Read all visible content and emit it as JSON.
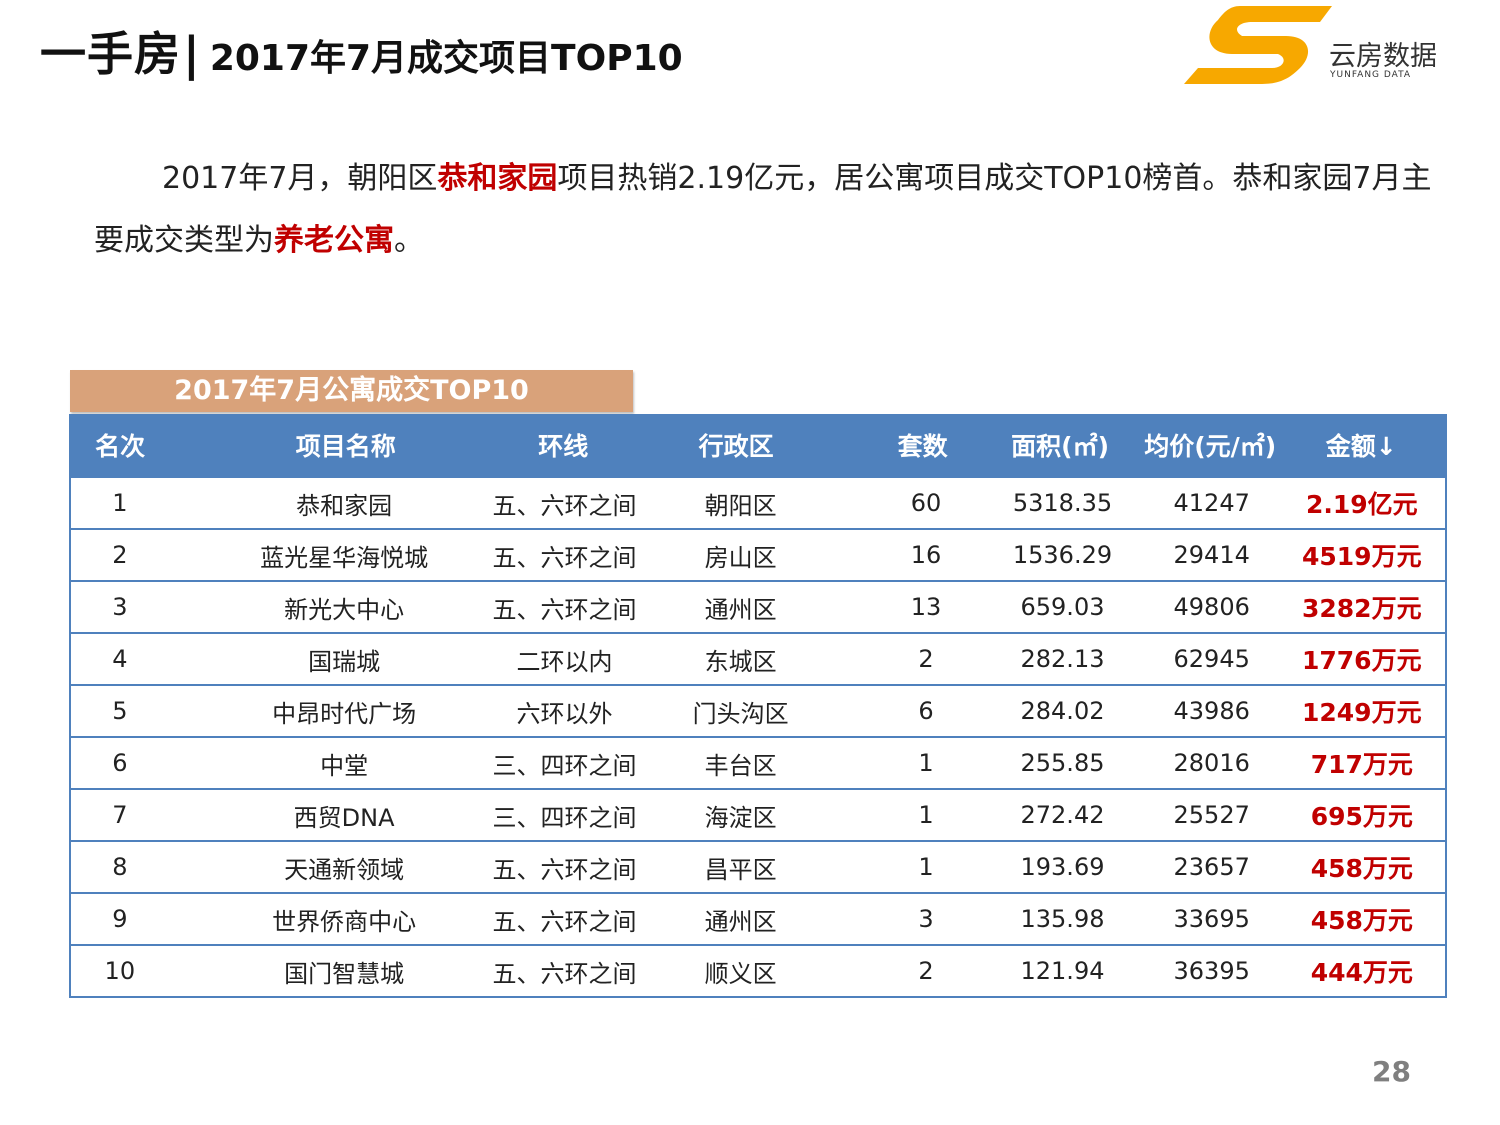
{
  "title": {
    "main": "一手房",
    "separator": "|",
    "sub": "2017年7月成交项目TOP10"
  },
  "logo": {
    "cn": "云房数据",
    "en": "YUNFANG DATA",
    "colors": {
      "primary": "#f7a800"
    }
  },
  "paragraph": {
    "p1": "2017年7月，朝阳区",
    "h1": "恭和家园",
    "p2": "项目热销2.19亿元，居公寓项目成交TOP10榜首。恭和家园7月主要成交类型为",
    "h2": "养老公寓",
    "p3": "。"
  },
  "table": {
    "caption": "2017年7月公寓成交TOP10",
    "headers": [
      "名次",
      "项目名称",
      "环线",
      "行政区",
      "套数",
      "面积(㎡)",
      "均价(元/㎡)",
      "金额↓"
    ],
    "rows": [
      [
        "1",
        "恭和家园",
        "五、六环之间",
        "朝阳区",
        "60",
        "5318.35",
        "41247",
        "2.19亿元"
      ],
      [
        "2",
        "蓝光星华海悦城",
        "五、六环之间",
        "房山区",
        "16",
        "1536.29",
        "29414",
        "4519万元"
      ],
      [
        "3",
        "新光大中心",
        "五、六环之间",
        "通州区",
        "13",
        "659.03",
        "49806",
        "3282万元"
      ],
      [
        "4",
        "国瑞城",
        "二环以内",
        "东城区",
        "2",
        "282.13",
        "62945",
        "1776万元"
      ],
      [
        "5",
        "中昂时代广场",
        "六环以外",
        "门头沟区",
        "6",
        "284.02",
        "43986",
        "1249万元"
      ],
      [
        "6",
        "中堂",
        "三、四环之间",
        "丰台区",
        "1",
        "255.85",
        "28016",
        "717万元"
      ],
      [
        "7",
        "西贸DNA",
        "三、四环之间",
        "海淀区",
        "1",
        "272.42",
        "25527",
        "695万元"
      ],
      [
        "8",
        "天通新领域",
        "五、六环之间",
        "昌平区",
        "1",
        "193.69",
        "23657",
        "458万元"
      ],
      [
        "9",
        "世界侨商中心",
        "五、六环之间",
        "通州区",
        "3",
        "135.98",
        "33695",
        "458万元"
      ],
      [
        "10",
        "国门智慧城",
        "五、六环之间",
        "顺义区",
        "2",
        "121.94",
        "36395",
        "444万元"
      ]
    ],
    "colors": {
      "header_bg": "#4f81bd",
      "caption_bg": "#d9a27a",
      "amount": "#c00000"
    }
  },
  "page_number": "28"
}
